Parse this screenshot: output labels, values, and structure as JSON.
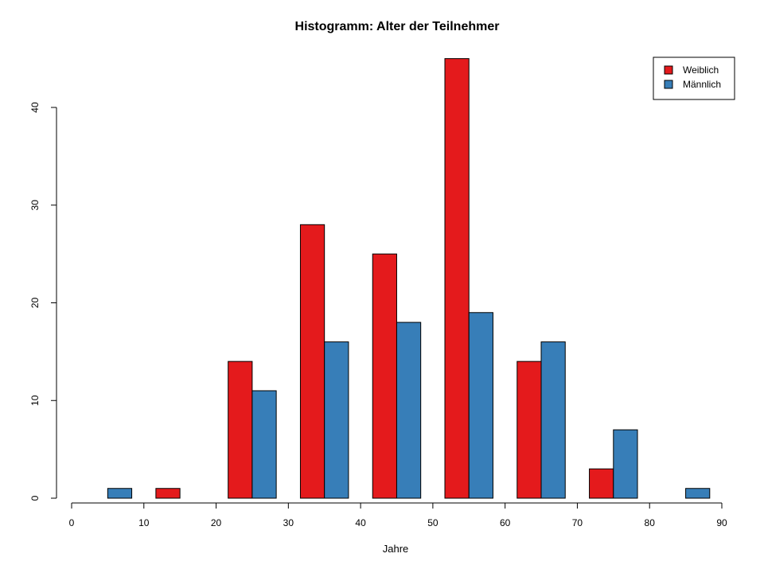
{
  "chart_data": {
    "type": "bar",
    "title": "Histogramm: Alter der Teilnehmer",
    "xlabel": "Jahre",
    "ylabel": "",
    "bin_starts": [
      0,
      10,
      20,
      30,
      40,
      50,
      60,
      70,
      80
    ],
    "bin_width": 10,
    "xlim": [
      0,
      90
    ],
    "xticks": [
      0,
      10,
      20,
      30,
      40,
      50,
      60,
      70,
      80,
      90
    ],
    "ylim": [
      0,
      45
    ],
    "yticks": [
      0,
      10,
      20,
      30,
      40
    ],
    "series": [
      {
        "name": "Weiblich",
        "color": "#E41A1C",
        "values": [
          0,
          1,
          14,
          28,
          25,
          45,
          14,
          3,
          0
        ]
      },
      {
        "name": "Männlich",
        "color": "#377EB8",
        "values": [
          1,
          0,
          11,
          16,
          18,
          19,
          16,
          7,
          1
        ]
      }
    ],
    "legend_position": "top-right",
    "grid": false
  }
}
